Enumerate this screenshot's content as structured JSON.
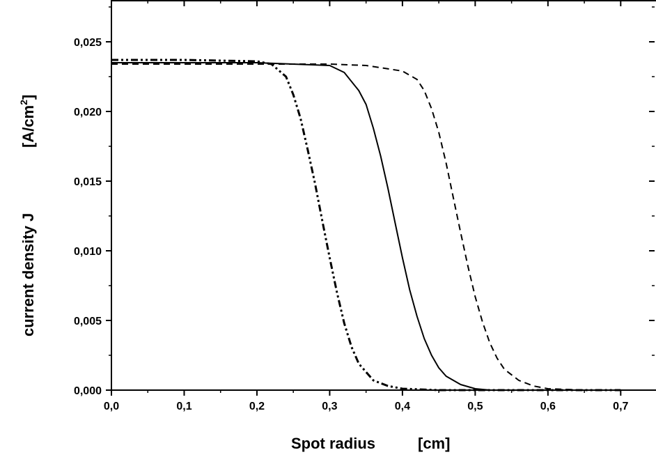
{
  "chart_data": {
    "type": "line",
    "xlabel": "Spot radius",
    "xlabel_unit": "[cm]",
    "ylabel": "current density J",
    "ylabel_unit": "[A/cm",
    "ylabel_unit_sup": "2",
    "ylabel_unit_close": "]",
    "xlim": [
      0.0,
      0.75
    ],
    "ylim": [
      0.0,
      0.0275
    ],
    "x_ticks": [
      0.0,
      0.1,
      0.2,
      0.3,
      0.4,
      0.5,
      0.6,
      0.7
    ],
    "x_tick_labels": [
      "0,0",
      "0,1",
      "0,2",
      "0,3",
      "0,4",
      "0,5",
      "0,6",
      "0,7"
    ],
    "y_ticks": [
      0.0,
      0.005,
      0.01,
      0.015,
      0.02,
      0.025
    ],
    "y_tick_labels": [
      "0,000",
      "0,005",
      "0,010",
      "0,015",
      "0,020",
      "0,025"
    ],
    "grid": false,
    "legend": "none",
    "series": [
      {
        "style": "dash-dot-dot",
        "color": "#000000",
        "x": [
          0.0,
          0.1,
          0.2,
          0.22,
          0.24,
          0.25,
          0.26,
          0.27,
          0.28,
          0.29,
          0.3,
          0.31,
          0.32,
          0.33,
          0.34,
          0.36,
          0.38,
          0.4,
          0.45,
          0.5,
          0.6,
          0.7
        ],
        "y": [
          0.0237,
          0.0237,
          0.0236,
          0.0234,
          0.0225,
          0.0212,
          0.0195,
          0.0172,
          0.0148,
          0.0121,
          0.0095,
          0.007,
          0.0048,
          0.0031,
          0.0019,
          0.0007,
          0.0003,
          0.0001,
          0.0,
          0.0,
          0.0,
          0.0
        ]
      },
      {
        "style": "solid",
        "color": "#000000",
        "x": [
          0.0,
          0.1,
          0.2,
          0.3,
          0.32,
          0.34,
          0.35,
          0.36,
          0.37,
          0.38,
          0.39,
          0.4,
          0.41,
          0.42,
          0.43,
          0.44,
          0.45,
          0.46,
          0.48,
          0.5,
          0.52,
          0.55,
          0.6,
          0.7
        ],
        "y": [
          0.0235,
          0.0235,
          0.0235,
          0.0233,
          0.0228,
          0.0215,
          0.0205,
          0.0188,
          0.0168,
          0.0145,
          0.012,
          0.0095,
          0.0072,
          0.0053,
          0.0037,
          0.0025,
          0.0016,
          0.001,
          0.0004,
          0.0001,
          0.0,
          0.0,
          0.0,
          0.0
        ]
      },
      {
        "style": "dash",
        "color": "#000000",
        "x": [
          0.0,
          0.1,
          0.2,
          0.3,
          0.35,
          0.4,
          0.42,
          0.43,
          0.44,
          0.45,
          0.46,
          0.47,
          0.48,
          0.49,
          0.5,
          0.51,
          0.52,
          0.53,
          0.54,
          0.56,
          0.58,
          0.6,
          0.65,
          0.7
        ],
        "y": [
          0.0234,
          0.0234,
          0.0234,
          0.0234,
          0.0233,
          0.0229,
          0.0223,
          0.0215,
          0.0202,
          0.0185,
          0.0163,
          0.0138,
          0.0113,
          0.0089,
          0.0067,
          0.0049,
          0.0034,
          0.0023,
          0.0015,
          0.0007,
          0.0003,
          0.0001,
          0.0,
          0.0
        ]
      }
    ]
  }
}
